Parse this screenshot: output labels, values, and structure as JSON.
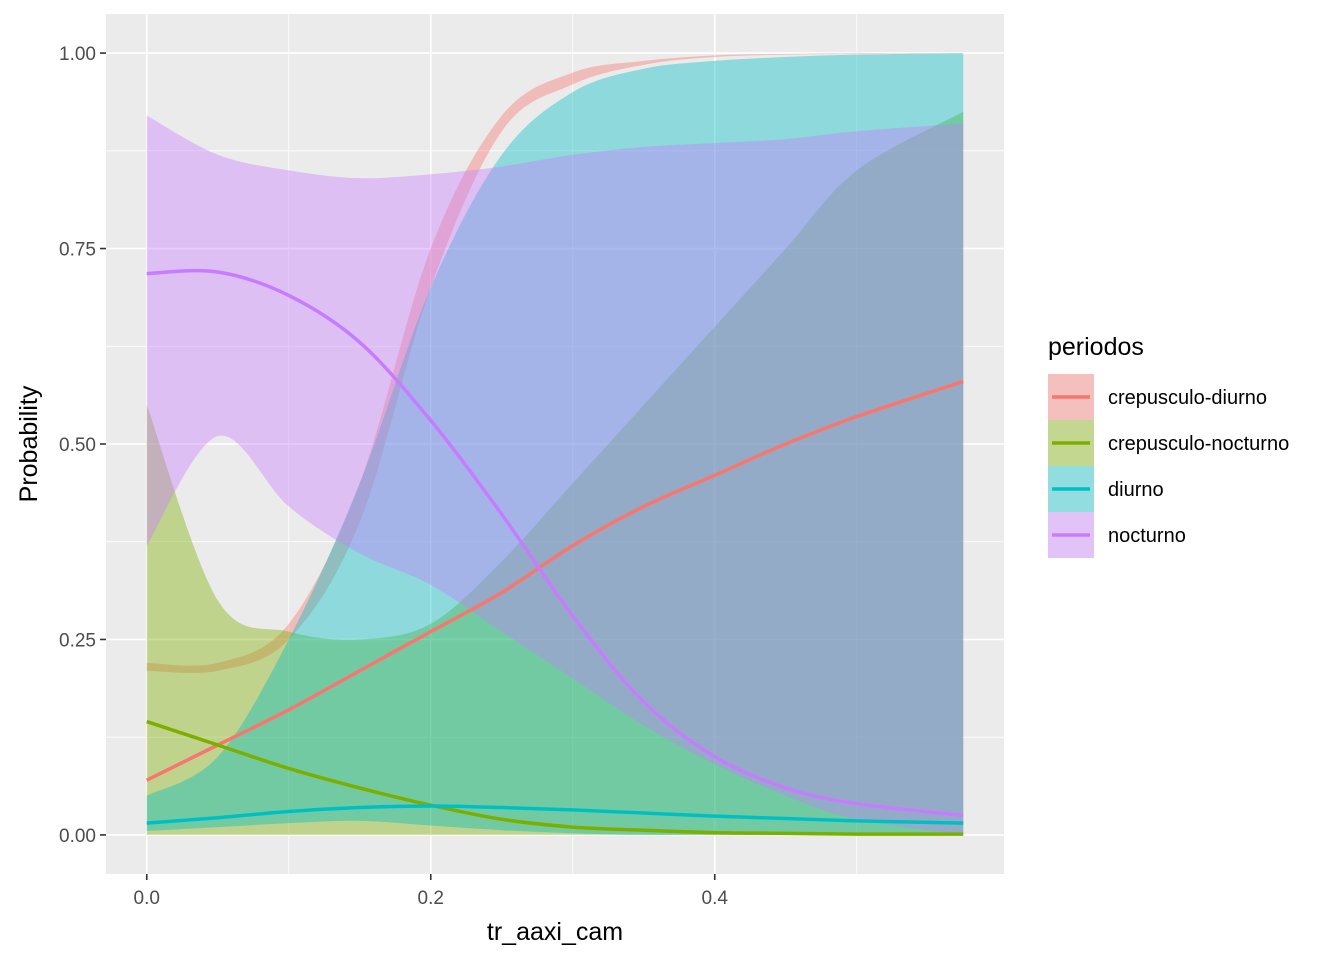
{
  "chart_data": {
    "type": "line",
    "xlabel": "tr_aaxi_cam",
    "ylabel": "Probability",
    "xlim": [
      -0.0287,
      0.6037
    ],
    "ylim": [
      -0.05,
      1.05
    ],
    "x_ticks": [
      0.0,
      0.2,
      0.4
    ],
    "x_tick_labels": [
      "0.0",
      "0.2",
      "0.4"
    ],
    "y_ticks": [
      0.0,
      0.25,
      0.5,
      0.75,
      1.0
    ],
    "y_tick_labels": [
      "0.00",
      "0.25",
      "0.50",
      "0.75",
      "1.00"
    ],
    "grid": true,
    "legend": {
      "title": "periodos",
      "position": "right"
    },
    "x": [
      0.0,
      0.05,
      0.1,
      0.15,
      0.2,
      0.25,
      0.3,
      0.35,
      0.4,
      0.45,
      0.5,
      0.575
    ],
    "series": [
      {
        "name": "crepusculo-diurno",
        "color": "#F8766D",
        "values": [
          0.07,
          0.115,
          0.16,
          0.21,
          0.26,
          0.31,
          0.37,
          0.42,
          0.46,
          0.5,
          0.535,
          0.58
        ],
        "lower": [
          0.21,
          0.21,
          0.25,
          0.4,
          0.7,
          0.9,
          0.96,
          0.985,
          0.995,
          0.998,
          0.999,
          1.0
        ],
        "upper": [
          0.22,
          0.22,
          0.27,
          0.45,
          0.75,
          0.92,
          0.975,
          0.99,
          0.997,
          0.999,
          1.0,
          1.0
        ]
      },
      {
        "name": "crepusculo-nocturno",
        "color": "#7CAE00",
        "values": [
          0.145,
          0.115,
          0.085,
          0.06,
          0.038,
          0.02,
          0.01,
          0.006,
          0.003,
          0.002,
          0.001,
          0.001
        ],
        "lower": [
          0.0,
          0.0,
          0.0,
          0.0,
          0.0,
          0.0,
          0.0,
          0.0,
          0.0,
          0.0,
          0.0,
          0.0
        ],
        "upper": [
          0.55,
          0.3,
          0.26,
          0.25,
          0.27,
          0.35,
          0.45,
          0.55,
          0.65,
          0.75,
          0.85,
          0.925
        ]
      },
      {
        "name": "diurno",
        "color": "#00BFC4",
        "values": [
          0.015,
          0.022,
          0.03,
          0.035,
          0.037,
          0.035,
          0.032,
          0.028,
          0.024,
          0.021,
          0.018,
          0.015
        ],
        "lower": [
          0.005,
          0.01,
          0.015,
          0.018,
          0.012,
          0.006,
          0.002,
          0.0,
          0.0,
          0.0,
          0.0,
          0.0
        ],
        "upper": [
          0.05,
          0.1,
          0.25,
          0.45,
          0.7,
          0.87,
          0.95,
          0.98,
          0.99,
          0.995,
          0.998,
          1.0
        ]
      },
      {
        "name": "nocturno",
        "color": "#C77CFF",
        "values": [
          0.718,
          0.72,
          0.69,
          0.63,
          0.53,
          0.41,
          0.28,
          0.17,
          0.1,
          0.06,
          0.04,
          0.025
        ],
        "lower": [
          0.37,
          0.51,
          0.42,
          0.36,
          0.32,
          0.26,
          0.2,
          0.14,
          0.09,
          0.05,
          0.02,
          0.0
        ],
        "upper": [
          0.92,
          0.87,
          0.85,
          0.84,
          0.845,
          0.855,
          0.87,
          0.88,
          0.885,
          0.89,
          0.9,
          0.91
        ]
      }
    ]
  }
}
